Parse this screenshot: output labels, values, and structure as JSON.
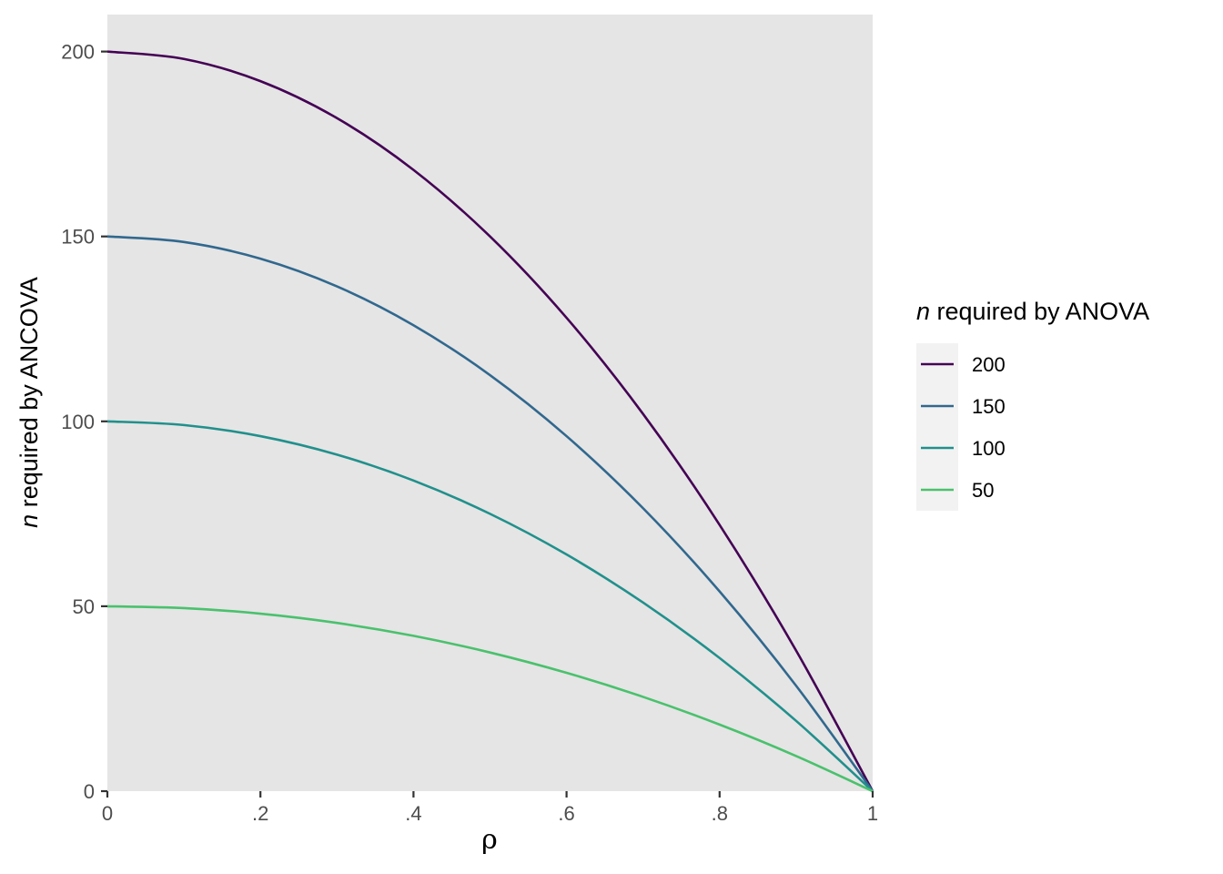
{
  "chart_data": {
    "type": "line",
    "xlabel": "ρ",
    "ylabel": {
      "italic": "n",
      "rest": " required by ANCOVA"
    },
    "xlim": [
      0,
      1
    ],
    "ylim": [
      0,
      210
    ],
    "x_ticks": [
      {
        "value": 0,
        "label": "0"
      },
      {
        "value": 0.2,
        "label": ".2"
      },
      {
        "value": 0.4,
        "label": ".4"
      },
      {
        "value": 0.6,
        "label": ".6"
      },
      {
        "value": 0.8,
        "label": ".8"
      },
      {
        "value": 1,
        "label": "1"
      }
    ],
    "y_ticks": [
      {
        "value": 0,
        "label": "0"
      },
      {
        "value": 50,
        "label": "50"
      },
      {
        "value": 100,
        "label": "100"
      },
      {
        "value": 150,
        "label": "150"
      },
      {
        "value": 200,
        "label": "200"
      }
    ],
    "grid": false,
    "panel_background": "#e5e5e5",
    "legend": {
      "title_italic": "n",
      "title_rest": " required by ANOVA",
      "position": "right"
    },
    "x": [
      0,
      0.1,
      0.2,
      0.3,
      0.4,
      0.5,
      0.6,
      0.7,
      0.8,
      0.9,
      1
    ],
    "series": [
      {
        "name": "200",
        "color": "#440154",
        "values": [
          200,
          198,
          192,
          182,
          168,
          150,
          128,
          102,
          72,
          38,
          0
        ]
      },
      {
        "name": "150",
        "color": "#31688e",
        "values": [
          150,
          148.5,
          144,
          136.5,
          126,
          112.5,
          96,
          76.5,
          54,
          28.5,
          0
        ]
      },
      {
        "name": "100",
        "color": "#21908c",
        "values": [
          100,
          99,
          96,
          91,
          84,
          75,
          64,
          51,
          36,
          19,
          0
        ]
      },
      {
        "name": "50",
        "color": "#4ac16d",
        "values": [
          50,
          49.5,
          48,
          45.5,
          42,
          37.5,
          32,
          25.5,
          18,
          9.5,
          0
        ]
      }
    ]
  }
}
